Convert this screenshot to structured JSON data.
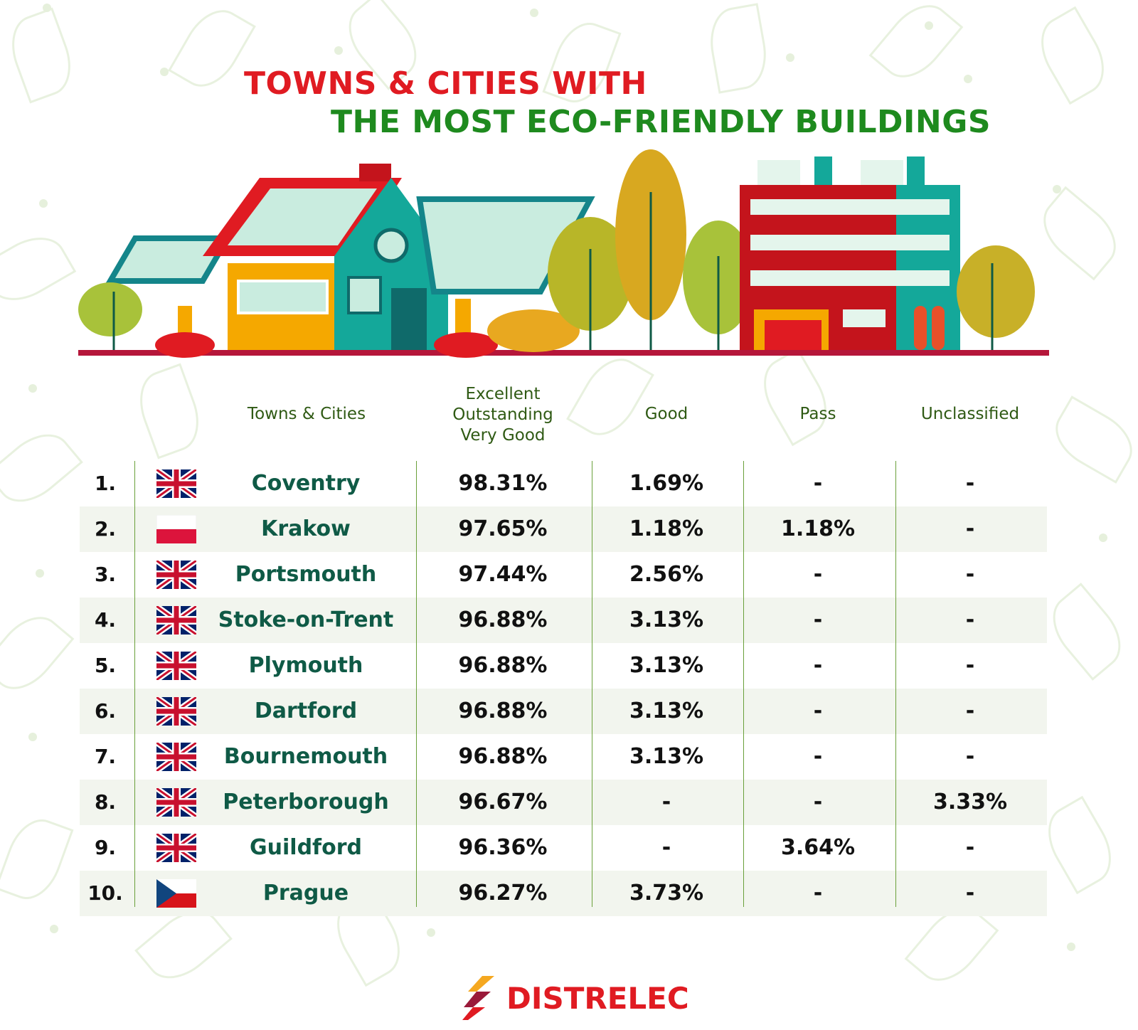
{
  "title": {
    "line1": "TOWNS & CITIES WITH",
    "line2": "THE MOST ECO-FRIENDLY BUILDINGS"
  },
  "colors": {
    "red": "#e01b22",
    "green": "#1e8a1e",
    "teal": "#0f5a46",
    "header": "#2f5a14",
    "alt_row": "#f2f5ee"
  },
  "headers": {
    "city": "Towns & Cities",
    "excellent": [
      "Excellent",
      "Outstanding",
      "Very Good"
    ],
    "good": "Good",
    "pass": "Pass",
    "unclassified": "Unclassified"
  },
  "rows": [
    {
      "rank": "1.",
      "flag": "uk",
      "city": "Coventry",
      "excellent": "98.31%",
      "good": "1.69%",
      "pass": "-",
      "unclassified": "-"
    },
    {
      "rank": "2.",
      "flag": "poland",
      "city": "Krakow",
      "excellent": "97.65%",
      "good": "1.18%",
      "pass": "1.18%",
      "unclassified": "-"
    },
    {
      "rank": "3.",
      "flag": "uk",
      "city": "Portsmouth",
      "excellent": "97.44%",
      "good": "2.56%",
      "pass": "-",
      "unclassified": "-"
    },
    {
      "rank": "4.",
      "flag": "uk",
      "city": "Stoke-on-Trent",
      "excellent": "96.88%",
      "good": "3.13%",
      "pass": "-",
      "unclassified": "-"
    },
    {
      "rank": "5.",
      "flag": "uk",
      "city": "Plymouth",
      "excellent": "96.88%",
      "good": "3.13%",
      "pass": "-",
      "unclassified": "-"
    },
    {
      "rank": "6.",
      "flag": "uk",
      "city": "Dartford",
      "excellent": "96.88%",
      "good": "3.13%",
      "pass": "-",
      "unclassified": "-"
    },
    {
      "rank": "7.",
      "flag": "uk",
      "city": "Bournemouth",
      "excellent": "96.88%",
      "good": "3.13%",
      "pass": "-",
      "unclassified": "-"
    },
    {
      "rank": "8.",
      "flag": "uk",
      "city": "Peterborough",
      "excellent": "96.67%",
      "good": "-",
      "pass": "-",
      "unclassified": "3.33%"
    },
    {
      "rank": "9.",
      "flag": "uk",
      "city": "Guildford",
      "excellent": "96.36%",
      "good": "-",
      "pass": "3.64%",
      "unclassified": "-"
    },
    {
      "rank": "10.",
      "flag": "czech",
      "city": "Prague",
      "excellent": "96.27%",
      "good": "3.73%",
      "pass": "-",
      "unclassified": "-"
    }
  ],
  "logo": {
    "text": "DISTRELEC",
    "icon": "lightning-bolt-icon"
  }
}
